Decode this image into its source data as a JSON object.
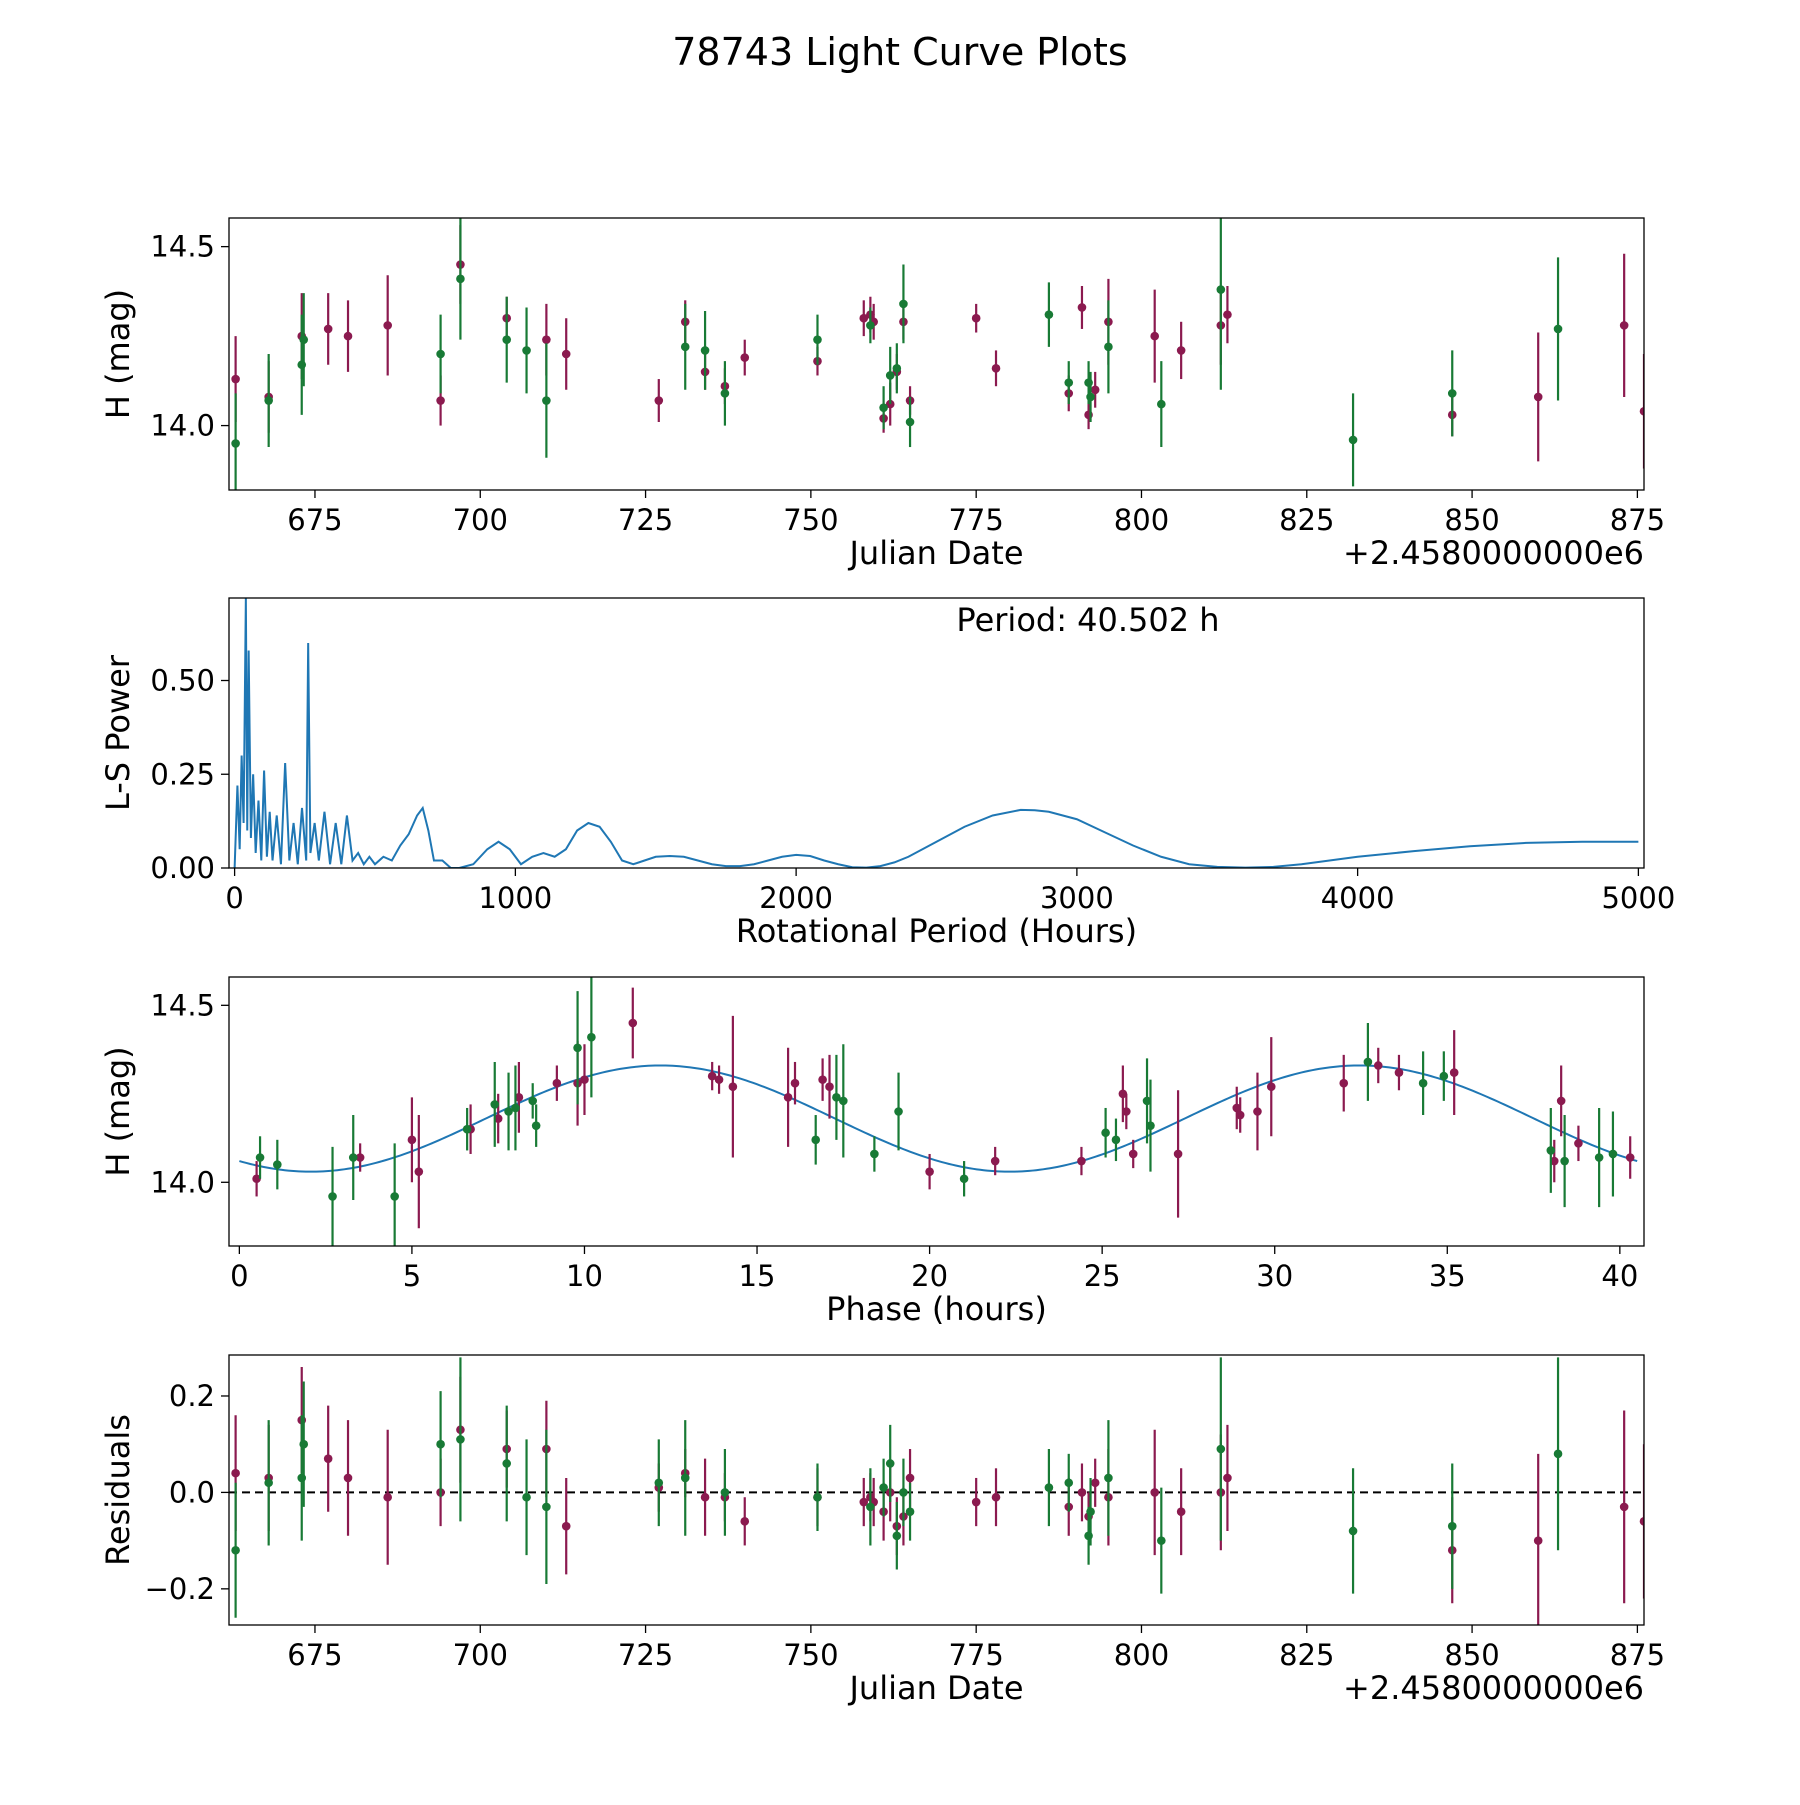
{
  "figure": {
    "title": "78743 Light Curve Plots",
    "colors": {
      "magenta": "#8b1a4f",
      "green": "#187a35",
      "line": "#1f77b4",
      "axis": "#000000"
    }
  },
  "chart_data": [
    {
      "type": "scatter",
      "title": "",
      "xlabel": "Julian Date",
      "ylabel": "H (mag)",
      "x_offset_label": "+2.4580000000e6",
      "xlim": [
        662,
        876
      ],
      "ylim": [
        13.82,
        14.58
      ],
      "xticks": [
        675,
        700,
        725,
        750,
        775,
        800,
        825,
        850,
        875
      ],
      "yticks": [
        14.0,
        14.5
      ],
      "ytick_labels": [
        "14.0",
        "14.5"
      ],
      "series": [
        {
          "name": "filter-magenta",
          "color": "#8b1a4f",
          "x": [
            663,
            668,
            673,
            677,
            680,
            686,
            694,
            697,
            704,
            710,
            713,
            727,
            731,
            734,
            737,
            740,
            751,
            758,
            759,
            759.5,
            761,
            762,
            763,
            764,
            765,
            775,
            778,
            789,
            791,
            792,
            793,
            795,
            802,
            806,
            812,
            813,
            847,
            860,
            873,
            876
          ],
          "y": [
            14.13,
            14.08,
            14.25,
            14.27,
            14.25,
            14.28,
            14.07,
            14.45,
            14.3,
            14.24,
            14.2,
            14.07,
            14.29,
            14.15,
            14.11,
            14.19,
            14.18,
            14.3,
            14.31,
            14.29,
            14.02,
            14.06,
            14.15,
            14.29,
            14.07,
            14.3,
            14.16,
            14.09,
            14.33,
            14.03,
            14.1,
            14.29,
            14.25,
            14.21,
            14.28,
            14.31,
            14.03,
            14.08,
            14.28,
            14.04
          ],
          "err": [
            0.12,
            0.1,
            0.12,
            0.1,
            0.1,
            0.14,
            0.07,
            0.11,
            0.06,
            0.1,
            0.1,
            0.06,
            0.06,
            0.05,
            0.05,
            0.05,
            0.04,
            0.05,
            0.05,
            0.05,
            0.04,
            0.06,
            0.05,
            0.05,
            0.04,
            0.04,
            0.05,
            0.05,
            0.06,
            0.04,
            0.05,
            0.12,
            0.13,
            0.08,
            0.11,
            0.08,
            0.06,
            0.18,
            0.2,
            0.16
          ]
        },
        {
          "name": "filter-green",
          "color": "#187a35",
          "x": [
            663,
            668,
            673,
            673.3,
            694,
            697,
            704,
            707,
            710,
            731,
            734,
            737,
            751,
            759,
            761,
            762,
            763,
            764,
            765,
            786,
            789,
            792,
            792.3,
            795,
            803,
            812,
            832,
            847,
            863
          ],
          "y": [
            13.95,
            14.07,
            14.17,
            14.24,
            14.2,
            14.41,
            14.24,
            14.21,
            14.07,
            14.22,
            14.21,
            14.09,
            14.24,
            14.28,
            14.05,
            14.14,
            14.16,
            14.34,
            14.01,
            14.31,
            14.12,
            14.12,
            14.08,
            14.22,
            14.06,
            14.38,
            13.96,
            14.09,
            14.27
          ],
          "err": [
            0.14,
            0.13,
            0.14,
            0.13,
            0.11,
            0.17,
            0.12,
            0.12,
            0.16,
            0.12,
            0.11,
            0.09,
            0.07,
            0.05,
            0.06,
            0.08,
            0.07,
            0.11,
            0.07,
            0.09,
            0.06,
            0.06,
            0.07,
            0.13,
            0.12,
            0.28,
            0.13,
            0.12,
            0.2
          ]
        }
      ]
    },
    {
      "type": "line",
      "xlabel": "Rotational Period (Hours)",
      "ylabel": "L-S Power",
      "annotation": "Period: 40.502 h",
      "xlim": [
        -20,
        5020
      ],
      "ylim": [
        0.0,
        0.72
      ],
      "xticks": [
        0,
        1000,
        2000,
        3000,
        4000,
        5000
      ],
      "yticks": [
        0.0,
        0.25,
        0.5
      ],
      "ytick_labels": [
        "0.00",
        "0.25",
        "0.50"
      ],
      "series": [
        {
          "name": "periodogram",
          "color": "#1f77b4",
          "x": [
            0,
            10,
            18,
            25,
            32,
            40,
            45,
            50,
            58,
            66,
            75,
            85,
            95,
            105,
            115,
            125,
            135,
            150,
            165,
            180,
            195,
            210,
            225,
            240,
            255,
            262,
            270,
            285,
            300,
            320,
            340,
            360,
            380,
            400,
            420,
            440,
            460,
            480,
            500,
            530,
            560,
            590,
            620,
            650,
            670,
            690,
            710,
            740,
            770,
            800,
            850,
            900,
            940,
            980,
            1020,
            1060,
            1100,
            1140,
            1180,
            1220,
            1260,
            1300,
            1340,
            1380,
            1420,
            1460,
            1500,
            1550,
            1600,
            1650,
            1700,
            1750,
            1800,
            1850,
            1900,
            1950,
            2000,
            2050,
            2100,
            2150,
            2200,
            2250,
            2300,
            2350,
            2400,
            2500,
            2600,
            2700,
            2800,
            2850,
            2900,
            3000,
            3100,
            3200,
            3300,
            3400,
            3500,
            3600,
            3700,
            3800,
            3900,
            4000,
            4200,
            4400,
            4600,
            4800,
            5000
          ],
          "y": [
            0.0,
            0.22,
            0.05,
            0.3,
            0.12,
            0.72,
            0.1,
            0.58,
            0.08,
            0.25,
            0.04,
            0.18,
            0.02,
            0.26,
            0.03,
            0.15,
            0.02,
            0.14,
            0.01,
            0.28,
            0.02,
            0.12,
            0.01,
            0.16,
            0.02,
            0.6,
            0.04,
            0.12,
            0.02,
            0.15,
            0.01,
            0.12,
            0.01,
            0.14,
            0.02,
            0.04,
            0.01,
            0.03,
            0.01,
            0.03,
            0.02,
            0.06,
            0.09,
            0.14,
            0.16,
            0.1,
            0.02,
            0.02,
            0.0,
            0.0,
            0.01,
            0.05,
            0.07,
            0.05,
            0.01,
            0.03,
            0.04,
            0.03,
            0.05,
            0.1,
            0.12,
            0.11,
            0.07,
            0.02,
            0.01,
            0.02,
            0.03,
            0.032,
            0.03,
            0.02,
            0.01,
            0.005,
            0.005,
            0.01,
            0.02,
            0.03,
            0.035,
            0.032,
            0.02,
            0.01,
            0.002,
            0.001,
            0.005,
            0.015,
            0.03,
            0.07,
            0.11,
            0.14,
            0.155,
            0.154,
            0.15,
            0.13,
            0.095,
            0.06,
            0.03,
            0.01,
            0.003,
            0.001,
            0.003,
            0.01,
            0.02,
            0.03,
            0.045,
            0.058,
            0.067,
            0.07,
            0.07
          ]
        }
      ]
    },
    {
      "type": "scatter",
      "xlabel": "Phase (hours)",
      "ylabel": "H (mag)",
      "xlim": [
        -0.3,
        40.7
      ],
      "ylim": [
        13.82,
        14.58
      ],
      "xticks": [
        0,
        5,
        10,
        15,
        20,
        25,
        30,
        35,
        40
      ],
      "yticks": [
        14.0,
        14.5
      ],
      "ytick_labels": [
        "14.0",
        "14.5"
      ],
      "model": {
        "period": 20.251,
        "phase_of_max": 12.2,
        "mean": 14.18,
        "amplitude": 0.15
      },
      "series": [
        {
          "name": "filter-magenta",
          "color": "#8b1a4f",
          "x": [
            0.5,
            3.5,
            5.0,
            5.2,
            6.7,
            7.5,
            8.1,
            9.2,
            9.8,
            10.0,
            11.4,
            13.7,
            13.9,
            14.3,
            15.9,
            16.1,
            16.9,
            17.1,
            20.0,
            21.9,
            24.4,
            25.6,
            25.7,
            25.9,
            27.2,
            28.9,
            29.0,
            29.5,
            29.9,
            32.0,
            33.0,
            33.6,
            35.2,
            38.1,
            38.3,
            38.8,
            40.3
          ],
          "y": [
            14.01,
            14.07,
            14.12,
            14.03,
            14.15,
            14.18,
            14.24,
            14.28,
            14.28,
            14.29,
            14.45,
            14.3,
            14.29,
            14.27,
            14.24,
            14.28,
            14.29,
            14.27,
            14.03,
            14.06,
            14.06,
            14.25,
            14.2,
            14.08,
            14.08,
            14.21,
            14.19,
            14.2,
            14.27,
            14.28,
            14.33,
            14.31,
            14.31,
            14.06,
            14.23,
            14.11,
            14.07
          ],
          "err": [
            0.05,
            0.04,
            0.12,
            0.16,
            0.07,
            0.07,
            0.1,
            0.05,
            0.12,
            0.1,
            0.1,
            0.04,
            0.04,
            0.2,
            0.14,
            0.06,
            0.06,
            0.09,
            0.05,
            0.04,
            0.04,
            0.08,
            0.05,
            0.04,
            0.18,
            0.06,
            0.05,
            0.11,
            0.14,
            0.08,
            0.05,
            0.05,
            0.12,
            0.06,
            0.1,
            0.05,
            0.06
          ]
        },
        {
          "name": "filter-green",
          "color": "#187a35",
          "x": [
            0.6,
            1.1,
            2.7,
            3.3,
            4.5,
            6.6,
            7.4,
            7.8,
            8.0,
            8.5,
            8.6,
            9.8,
            10.2,
            16.7,
            17.3,
            17.5,
            18.4,
            19.1,
            21.0,
            25.1,
            25.4,
            26.3,
            26.4,
            32.7,
            34.3,
            34.9,
            38.0,
            38.4,
            39.4,
            39.8
          ],
          "y": [
            14.07,
            14.05,
            13.96,
            14.07,
            13.96,
            14.15,
            14.22,
            14.2,
            14.21,
            14.23,
            14.16,
            14.38,
            14.41,
            14.12,
            14.24,
            14.23,
            14.08,
            14.2,
            14.01,
            14.14,
            14.12,
            14.23,
            14.16,
            14.34,
            14.28,
            14.3,
            14.09,
            14.06,
            14.07,
            14.08
          ],
          "err": [
            0.06,
            0.07,
            0.14,
            0.12,
            0.15,
            0.06,
            0.12,
            0.11,
            0.12,
            0.05,
            0.06,
            0.16,
            0.17,
            0.07,
            0.12,
            0.16,
            0.05,
            0.11,
            0.05,
            0.07,
            0.06,
            0.12,
            0.13,
            0.11,
            0.09,
            0.07,
            0.12,
            0.13,
            0.14,
            0.12
          ]
        }
      ]
    },
    {
      "type": "scatter",
      "xlabel": "Julian Date",
      "ylabel": "Residuals",
      "x_offset_label": "+2.4580000000e6",
      "xlim": [
        662,
        876
      ],
      "ylim": [
        -0.275,
        0.285
      ],
      "xticks": [
        675,
        700,
        725,
        750,
        775,
        800,
        825,
        850,
        875
      ],
      "yticks": [
        -0.2,
        0.0,
        0.2
      ],
      "ytick_labels": [
        "−0.2",
        "0.0",
        "0.2"
      ],
      "reference_line": 0.0,
      "series": [
        {
          "name": "filter-magenta",
          "color": "#8b1a4f",
          "x": [
            663,
            668,
            673,
            677,
            680,
            686,
            694,
            697,
            704,
            710,
            713,
            727,
            731,
            734,
            737,
            740,
            751,
            758,
            759,
            759.5,
            761,
            762,
            763,
            764,
            765,
            775,
            778,
            789,
            791,
            792,
            793,
            795,
            802,
            806,
            812,
            813,
            847,
            860,
            873,
            876
          ],
          "y": [
            0.04,
            0.03,
            0.15,
            0.07,
            0.03,
            -0.01,
            0.0,
            0.13,
            0.09,
            0.09,
            -0.07,
            0.01,
            0.04,
            -0.01,
            -0.01,
            -0.06,
            -0.01,
            -0.02,
            -0.01,
            -0.02,
            -0.04,
            0.0,
            -0.07,
            -0.05,
            0.03,
            -0.02,
            -0.01,
            -0.03,
            0.0,
            -0.05,
            0.02,
            -0.01,
            0.0,
            -0.04,
            0.0,
            0.03,
            -0.12,
            -0.1,
            -0.03,
            -0.06
          ],
          "err": [
            0.12,
            0.11,
            0.11,
            0.11,
            0.12,
            0.14,
            0.07,
            0.11,
            0.08,
            0.1,
            0.1,
            0.05,
            0.05,
            0.08,
            0.05,
            0.05,
            0.06,
            0.05,
            0.05,
            0.05,
            0.06,
            0.06,
            0.06,
            0.06,
            0.06,
            0.05,
            0.06,
            0.06,
            0.06,
            0.05,
            0.05,
            0.1,
            0.13,
            0.09,
            0.12,
            0.11,
            0.11,
            0.18,
            0.2,
            0.16
          ]
        },
        {
          "name": "filter-green",
          "color": "#187a35",
          "x": [
            663,
            668,
            673,
            673.3,
            694,
            697,
            704,
            707,
            710,
            727,
            731,
            737,
            751,
            759,
            761,
            762,
            763,
            764,
            765,
            786,
            789,
            792,
            792.3,
            795,
            803,
            812,
            832,
            847,
            863
          ],
          "y": [
            -0.12,
            0.02,
            0.03,
            0.1,
            0.1,
            0.11,
            0.06,
            -0.01,
            -0.03,
            0.02,
            0.03,
            0.0,
            -0.01,
            -0.03,
            0.01,
            0.06,
            -0.09,
            0.0,
            -0.04,
            0.01,
            0.02,
            -0.09,
            -0.04,
            0.03,
            -0.1,
            0.09,
            -0.08,
            -0.07,
            0.08
          ],
          "err": [
            0.14,
            0.13,
            0.13,
            0.13,
            0.11,
            0.17,
            0.12,
            0.12,
            0.16,
            0.09,
            0.12,
            0.09,
            0.07,
            0.08,
            0.06,
            0.08,
            0.07,
            0.07,
            0.06,
            0.08,
            0.06,
            0.06,
            0.07,
            0.12,
            0.11,
            0.19,
            0.13,
            0.13,
            0.2
          ]
        }
      ]
    }
  ]
}
